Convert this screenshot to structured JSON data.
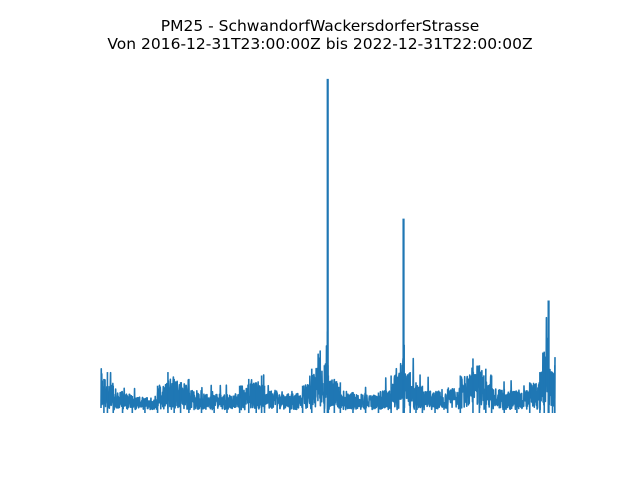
{
  "chart_data": {
    "type": "line",
    "title_lines": [
      "PM25 - SchwandorfWackersdorferStrasse",
      "Von 2016-12-31T23:00:00Z bis 2022-12-31T22:00:00Z"
    ],
    "xlabel": "",
    "ylabel": "",
    "axes_visible": false,
    "grid": false,
    "line_color": "#1f77b4",
    "x_start": "2016-12-31T23:00:00Z",
    "x_end": "2022-12-31T22:00:00Z",
    "xlim": [
      "2016-12-31T23:00:00Z",
      "2022-12-31T22:00:00Z"
    ],
    "ylim": [
      0,
      100
    ],
    "series": [
      {
        "x": [
          "2017-01-15",
          "2017-02-01",
          "2017-03-01",
          "2017-04-15",
          "2017-06-01",
          "2017-08-01",
          "2017-10-01",
          "2017-11-20",
          "2017-12-20",
          "2018-01-20",
          "2018-03-01",
          "2018-05-01",
          "2018-07-01",
          "2018-09-01",
          "2018-11-01",
          "2018-12-15",
          "2019-01-20",
          "2019-02-15",
          "2019-03-01",
          "2019-05-01",
          "2019-07-01",
          "2019-09-01",
          "2019-10-15",
          "2019-12-15",
          "2019-12-31",
          "2020-01-01",
          "2020-01-03",
          "2020-02-01",
          "2020-03-01",
          "2020-05-01",
          "2020-07-01",
          "2020-09-01",
          "2020-11-01",
          "2020-12-31",
          "2021-01-01",
          "2021-01-03",
          "2021-02-01",
          "2021-03-01",
          "2021-04-01",
          "2021-06-01",
          "2021-08-01",
          "2021-10-01",
          "2021-12-01",
          "2022-01-01",
          "2022-02-01",
          "2022-03-01",
          "2022-05-01",
          "2022-07-01",
          "2022-09-01",
          "2022-10-20",
          "2022-11-10",
          "2022-12-01",
          "2022-12-20",
          "2022-12-31"
        ],
        "y": [
          10,
          12,
          8,
          6,
          5,
          4,
          8,
          12,
          10,
          9,
          10,
          6,
          5,
          5,
          8,
          10,
          9,
          11,
          8,
          6,
          5,
          8,
          13,
          14,
          98,
          14,
          11,
          10,
          9,
          6,
          5,
          6,
          11,
          57,
          10,
          20,
          12,
          9,
          8,
          6,
          7,
          11,
          16,
          14,
          13,
          11,
          7,
          6,
          9,
          12,
          18,
          33,
          12,
          14
        ]
      }
    ]
  }
}
